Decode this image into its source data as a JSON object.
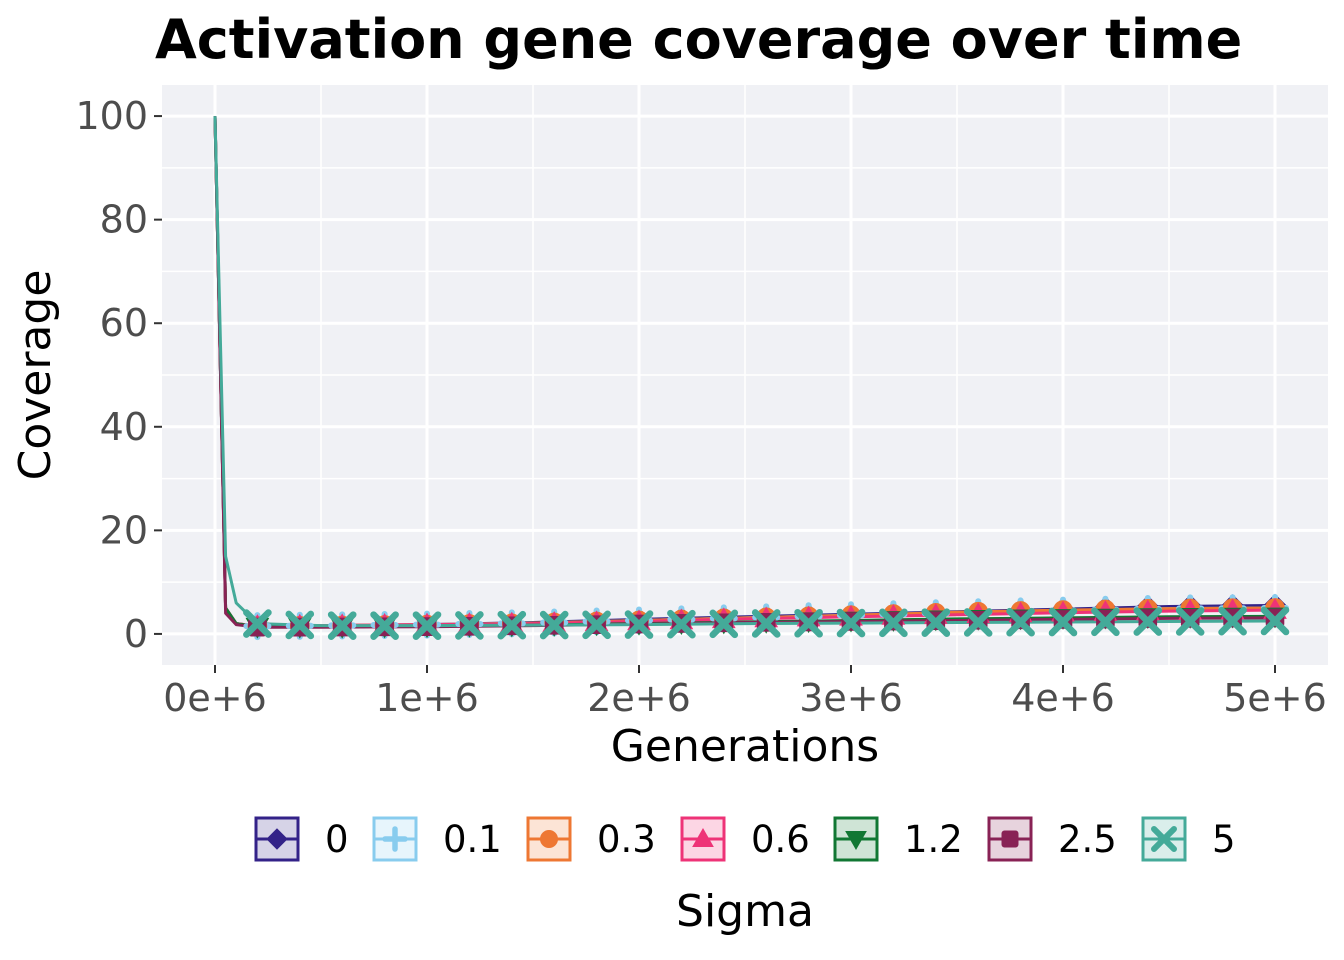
{
  "chart_data": {
    "type": "line",
    "title": "Activation gene coverage over time",
    "xlabel": "Generations",
    "ylabel": "Coverage",
    "xlim": [
      -250000,
      5250000
    ],
    "ylim": [
      -6,
      106
    ],
    "x_ticks": [
      0,
      1000000,
      2000000,
      3000000,
      4000000,
      5000000
    ],
    "x_tick_labels": [
      "0e+6",
      "1e+6",
      "2e+6",
      "3e+6",
      "4e+6",
      "5e+6"
    ],
    "y_ticks": [
      0,
      20,
      40,
      60,
      80,
      100
    ],
    "y_tick_labels": [
      "0",
      "20",
      "40",
      "60",
      "80",
      "100"
    ],
    "grid": true,
    "legend": {
      "title": "Sigma",
      "position": "bottom"
    },
    "marker_x": [
      0,
      200000,
      400000,
      600000,
      800000,
      1000000,
      1200000,
      1400000,
      1600000,
      1800000,
      2000000,
      2200000,
      2400000,
      2600000,
      2800000,
      3000000,
      3200000,
      3400000,
      3600000,
      3800000,
      4000000,
      4200000,
      4400000,
      4600000,
      4800000,
      5000000
    ],
    "series": [
      {
        "name": "0",
        "color": "#332288",
        "marker": "diamond",
        "x": [
          0,
          50000,
          100000,
          200000,
          500000,
          1000000,
          1500000,
          2000000,
          2500000,
          3000000,
          3500000,
          4000000,
          4500000,
          5000000
        ],
        "values": [
          100,
          5,
          2.0,
          1.5,
          1.6,
          1.8,
          2.2,
          2.8,
          3.3,
          3.8,
          4.3,
          4.8,
          5.3,
          5.5
        ]
      },
      {
        "name": "0.1",
        "color": "#88CCEE",
        "marker": "plus",
        "x": [
          0,
          50000,
          100000,
          200000,
          500000,
          1000000,
          1500000,
          2000000,
          2500000,
          3000000,
          3500000,
          4000000,
          4500000,
          5000000
        ],
        "values": [
          100,
          5,
          2.0,
          1.5,
          1.6,
          1.8,
          2.1,
          2.6,
          3.1,
          3.6,
          4.1,
          4.5,
          4.9,
          5.0
        ]
      },
      {
        "name": "0.3",
        "color": "#EE7733",
        "marker": "circle",
        "x": [
          0,
          50000,
          100000,
          200000,
          500000,
          1000000,
          1500000,
          2000000,
          2500000,
          3000000,
          3500000,
          4000000,
          4500000,
          5000000
        ],
        "values": [
          100,
          5,
          2.0,
          1.5,
          1.6,
          1.8,
          2.1,
          2.6,
          3.1,
          3.6,
          4.2,
          4.6,
          4.9,
          5.0
        ]
      },
      {
        "name": "0.6",
        "color": "#EE3377",
        "marker": "triangle-up",
        "x": [
          0,
          50000,
          100000,
          200000,
          500000,
          1000000,
          1500000,
          2000000,
          2500000,
          3000000,
          3500000,
          4000000,
          4500000,
          5000000
        ],
        "values": [
          100,
          5,
          2.0,
          1.5,
          1.6,
          1.8,
          2.0,
          2.4,
          2.9,
          3.3,
          3.7,
          4.1,
          4.4,
          4.6
        ]
      },
      {
        "name": "1.2",
        "color": "#117733",
        "marker": "triangle-down",
        "x": [
          0,
          50000,
          100000,
          200000,
          500000,
          1000000,
          1500000,
          2000000,
          2500000,
          3000000,
          3500000,
          4000000,
          4500000,
          5000000
        ],
        "values": [
          100,
          5,
          2.0,
          1.4,
          1.4,
          1.5,
          1.7,
          2.0,
          2.3,
          2.6,
          2.9,
          3.1,
          3.3,
          3.4
        ]
      },
      {
        "name": "2.5",
        "color": "#882255",
        "marker": "square",
        "x": [
          0,
          50000,
          100000,
          200000,
          500000,
          1000000,
          1500000,
          2000000,
          2500000,
          3000000,
          3500000,
          4000000,
          4500000,
          5000000
        ],
        "values": [
          100,
          4,
          1.8,
          1.3,
          1.3,
          1.4,
          1.6,
          1.9,
          2.2,
          2.4,
          2.6,
          2.8,
          3.0,
          3.1
        ]
      },
      {
        "name": "5",
        "color": "#44AA99",
        "marker": "cross",
        "x": [
          0,
          50000,
          100000,
          200000,
          500000,
          1000000,
          1500000,
          2000000,
          2500000,
          3000000,
          3500000,
          4000000,
          4500000,
          5000000
        ],
        "values": [
          100,
          15,
          6.0,
          2.0,
          1.6,
          1.6,
          1.7,
          1.8,
          2.0,
          2.1,
          2.2,
          2.3,
          2.4,
          2.5
        ]
      }
    ]
  }
}
